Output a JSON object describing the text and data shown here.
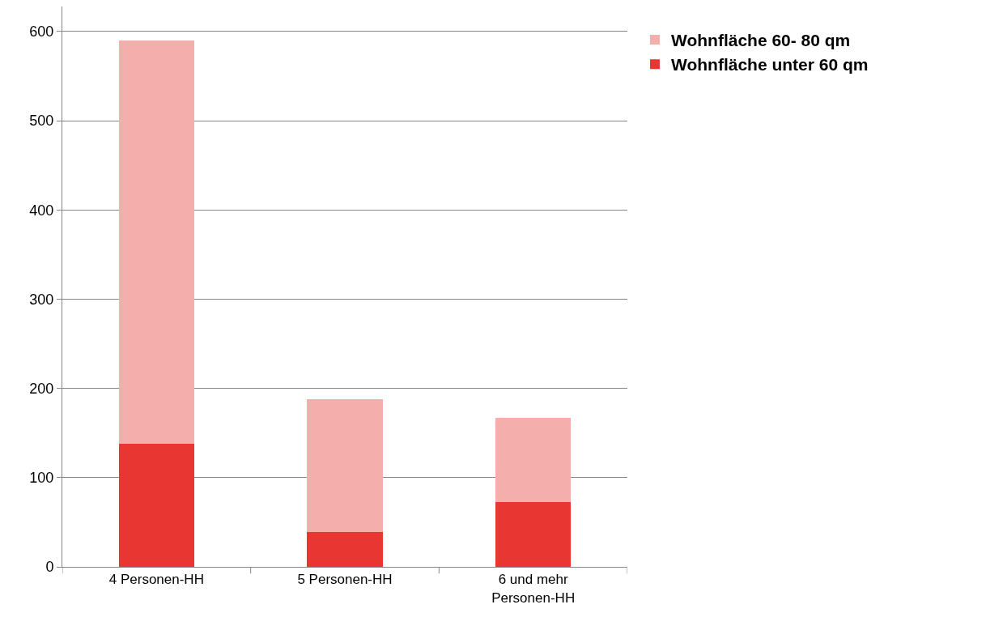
{
  "chart_data": {
    "type": "bar",
    "stacked": true,
    "categories": [
      "4 Personen-HH",
      "5 Personen-HH",
      "6 und mehr Personen-HH"
    ],
    "series": [
      {
        "name": "Wohnfläche unter 60 qm",
        "color": "#e83632",
        "values": [
          138,
          39,
          73
        ]
      },
      {
        "name": "Wohnfläche 60- 80 qm",
        "color": "#f4aeab",
        "values": [
          452,
          149,
          94
        ]
      }
    ],
    "ylim": [
      0,
      628
    ],
    "yticks": [
      0,
      100,
      200,
      300,
      400,
      500,
      600
    ],
    "grid": "y",
    "legend": "top right"
  }
}
